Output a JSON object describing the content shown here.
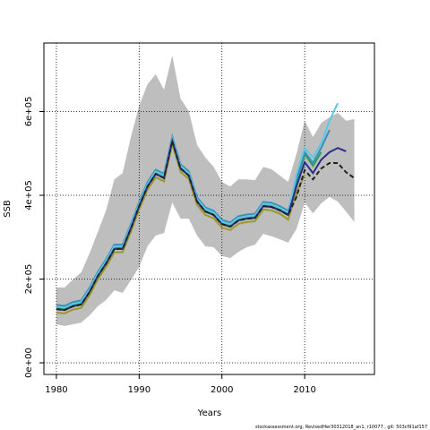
{
  "chart_data": {
    "type": "line",
    "xlabel": "Years",
    "ylabel": "SSB",
    "annotation": "stockassessment.org, RevisedHer30312018_an1, r10077 , git: 503cf91af157",
    "x": [
      1980,
      1981,
      1982,
      1983,
      1984,
      1985,
      1986,
      1987,
      1988,
      1989,
      1990,
      1991,
      1992,
      1993,
      1994,
      1995,
      1996,
      1997,
      1998,
      1999,
      2000,
      2001,
      2002,
      2003,
      2004,
      2005,
      2006,
      2007,
      2008,
      2009,
      2010,
      2011,
      2012,
      2013,
      2014,
      2015,
      2016
    ],
    "band": {
      "color": "#bebebe",
      "upper": [
        180000,
        180000,
        199000,
        216000,
        261000,
        312000,
        364000,
        438000,
        453000,
        539000,
        614000,
        665000,
        689000,
        652000,
        734000,
        631000,
        601000,
        520000,
        490000,
        468000,
        432000,
        421000,
        438000,
        438000,
        436000,
        468000,
        462000,
        447000,
        432000,
        498000,
        578000,
        539000,
        573000,
        586000,
        597000,
        578000,
        582000
      ],
      "lower": [
        92000,
        88000,
        92000,
        96000,
        113000,
        135000,
        150000,
        173000,
        167000,
        197000,
        229000,
        278000,
        304000,
        310000,
        383000,
        344000,
        344000,
        304000,
        278000,
        276000,
        255000,
        250000,
        265000,
        276000,
        282000,
        308000,
        302000,
        295000,
        287000,
        319000,
        383000,
        357000,
        381000,
        396000,
        385000,
        361000,
        336000
      ]
    },
    "series": [
      {
        "color": "#9a9a2a",
        "dash": false,
        "values": [
          120000,
          118000,
          127000,
          131000,
          161000,
          199000,
          229000,
          264000,
          264000,
          313000,
          366000,
          413000,
          443000,
          433000,
          522000,
          456000,
          439000,
          377000,
          353000,
          345000,
          323000,
          317000,
          332000,
          336000,
          338000,
          366000,
          364000,
          356000,
          342000,
          406000,
          449000,
          null,
          null,
          null,
          null,
          null,
          null
        ]
      },
      {
        "color": "#2ca25f",
        "dash": false,
        "values": [
          132000,
          130000,
          139000,
          143000,
          173000,
          211000,
          241000,
          276000,
          276000,
          325000,
          378000,
          425000,
          455000,
          445000,
          534000,
          468000,
          451000,
          389000,
          365000,
          357000,
          335000,
          329000,
          344000,
          348000,
          350000,
          378000,
          376000,
          368000,
          357000,
          430000,
          498000,
          470000,
          503000,
          null,
          null,
          null,
          null
        ]
      },
      {
        "color": "#3a8fb7",
        "dash": false,
        "values": [
          138000,
          136000,
          145000,
          149000,
          179000,
          217000,
          247000,
          282000,
          282000,
          331000,
          384000,
          431000,
          461000,
          451000,
          540000,
          474000,
          457000,
          395000,
          371000,
          363000,
          341000,
          335000,
          350000,
          354000,
          356000,
          384000,
          382000,
          374000,
          363000,
          438000,
          503000,
          477000,
          513000,
          556000,
          null,
          null,
          null
        ]
      },
      {
        "color": "#5bc8e8",
        "dash": false,
        "values": [
          134000,
          132000,
          141000,
          145000,
          175000,
          213000,
          243000,
          278000,
          278000,
          327000,
          380000,
          427000,
          457000,
          447000,
          536000,
          470000,
          453000,
          391000,
          367000,
          359000,
          337000,
          331000,
          346000,
          350000,
          352000,
          380000,
          378000,
          370000,
          359000,
          449000,
          513000,
          490000,
          524000,
          578000,
          620000,
          null,
          null
        ]
      },
      {
        "color": "#2b2b8c",
        "dash": false,
        "values": [
          128000,
          126000,
          135000,
          139000,
          169000,
          207000,
          237000,
          272000,
          272000,
          321000,
          374000,
          421000,
          451000,
          441000,
          530000,
          464000,
          447000,
          385000,
          361000,
          353000,
          331000,
          325000,
          340000,
          344000,
          346000,
          374000,
          372000,
          364000,
          353000,
          421000,
          479000,
          453000,
          485000,
          503000,
          513000,
          505000,
          null
        ]
      },
      {
        "color": "#222222",
        "dash": true,
        "values": [
          128000,
          126000,
          135000,
          139000,
          169000,
          207000,
          237000,
          272000,
          272000,
          321000,
          374000,
          421000,
          451000,
          441000,
          530000,
          464000,
          447000,
          385000,
          361000,
          353000,
          331000,
          325000,
          340000,
          344000,
          346000,
          374000,
          372000,
          364000,
          353000,
          396000,
          460000,
          438000,
          464000,
          477000,
          477000,
          455000,
          441000
        ]
      }
    ],
    "xlim": [
      1978.49,
      2018.43
    ],
    "ylim": [
      -27800,
      763600
    ],
    "xticks": [
      1980,
      1990,
      2000,
      2010
    ],
    "yticks": [
      {
        "value": 0,
        "label": "0e+00"
      },
      {
        "value": 200000,
        "label": "2e+05"
      },
      {
        "value": 400000,
        "label": "4e+05"
      },
      {
        "value": 600000,
        "label": "6e+05"
      }
    ],
    "grid": true
  }
}
